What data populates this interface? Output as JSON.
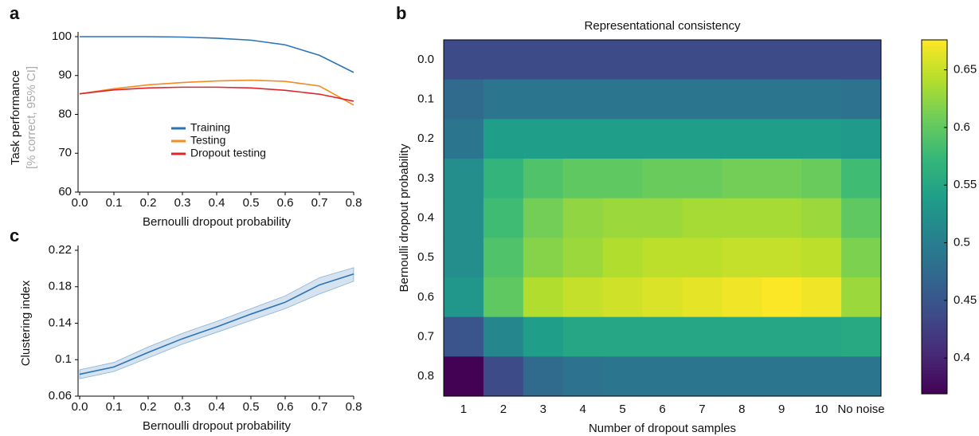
{
  "chart_data": [
    {
      "type": "line",
      "panel": "a",
      "xlabel": "Bernoulli dropout probability",
      "ylabel": "Task performance",
      "ylabel2": "[% correct, 95% CI]",
      "x": [
        0,
        0.1,
        0.2,
        0.3,
        0.4,
        0.5,
        0.6,
        0.7,
        0.8
      ],
      "series": [
        {
          "name": "Training",
          "color": "#2c73b4",
          "values": [
            100,
            100,
            100,
            99.9,
            99.6,
            99.1,
            97.9,
            95.2,
            90.8
          ]
        },
        {
          "name": "Testing",
          "color": "#f58a1f",
          "values": [
            85.3,
            86.6,
            87.6,
            88.2,
            88.6,
            88.8,
            88.5,
            87.3,
            82.4
          ]
        },
        {
          "name": "Dropout testing",
          "color": "#e0242b",
          "values": [
            85.3,
            86.3,
            86.8,
            87.0,
            87.0,
            86.8,
            86.2,
            85.2,
            83.4
          ]
        }
      ],
      "xlim": [
        0,
        0.8
      ],
      "xticks": [
        {
          "value": 0,
          "label": "0.0"
        },
        0.1,
        0.2,
        0.3,
        0.4,
        0.5,
        0.6,
        0.7,
        0.8
      ],
      "ylim": [
        60,
        100
      ],
      "yticks": [
        60,
        70,
        80,
        90,
        100
      ],
      "legend": "center"
    },
    {
      "type": "heatmap",
      "panel": "b",
      "title": "Representational consistency",
      "xlabel": "Number of dropout samples",
      "ylabel": "Bernoulli dropout probability",
      "x": [
        "1",
        "2",
        "3",
        "4",
        "5",
        "6",
        "7",
        "8",
        "9",
        "10",
        "No noise"
      ],
      "y": [
        "0.0",
        "0.1",
        "0.2",
        "0.3",
        "0.4",
        "0.5",
        "0.6",
        "0.7",
        "0.8"
      ],
      "values": [
        [
          0.44,
          0.44,
          0.44,
          0.44,
          0.44,
          0.44,
          0.44,
          0.44,
          0.44,
          0.44,
          0.44
        ],
        [
          0.475,
          0.49,
          0.49,
          0.49,
          0.49,
          0.49,
          0.49,
          0.49,
          0.49,
          0.49,
          0.485
        ],
        [
          0.49,
          0.54,
          0.54,
          0.54,
          0.54,
          0.54,
          0.54,
          0.54,
          0.54,
          0.54,
          0.535
        ],
        [
          0.52,
          0.57,
          0.59,
          0.6,
          0.6,
          0.605,
          0.605,
          0.61,
          0.61,
          0.605,
          0.58
        ],
        [
          0.52,
          0.58,
          0.61,
          0.625,
          0.63,
          0.63,
          0.635,
          0.635,
          0.635,
          0.63,
          0.6
        ],
        [
          0.52,
          0.59,
          0.62,
          0.63,
          0.64,
          0.645,
          0.645,
          0.65,
          0.65,
          0.645,
          0.615
        ],
        [
          0.53,
          0.6,
          0.64,
          0.65,
          0.655,
          0.66,
          0.665,
          0.67,
          0.675,
          0.67,
          0.63
        ],
        [
          0.45,
          0.51,
          0.54,
          0.55,
          0.55,
          0.55,
          0.55,
          0.55,
          0.55,
          0.55,
          0.555
        ],
        [
          0.37,
          0.44,
          0.475,
          0.485,
          0.49,
          0.49,
          0.49,
          0.49,
          0.49,
          0.49,
          0.49
        ]
      ],
      "colormap": "viridis",
      "clim": [
        0.369,
        0.676
      ],
      "cticks": [
        0.4,
        0.45,
        0.5,
        0.55,
        0.6,
        0.65
      ]
    },
    {
      "type": "line",
      "panel": "c",
      "xlabel": "Bernoulli dropout probability",
      "ylabel": "Clustering index",
      "x": [
        0,
        0.1,
        0.2,
        0.3,
        0.4,
        0.5,
        0.6,
        0.7,
        0.8
      ],
      "series": [
        {
          "color": "#2c73b4",
          "values": [
            0.084,
            0.092,
            0.108,
            0.123,
            0.136,
            0.15,
            0.163,
            0.182,
            0.194
          ]
        }
      ],
      "band": {
        "lower": [
          0.079,
          0.087,
          0.102,
          0.117,
          0.13,
          0.143,
          0.156,
          0.172,
          0.186
        ],
        "upper": [
          0.089,
          0.097,
          0.114,
          0.129,
          0.142,
          0.156,
          0.17,
          0.19,
          0.201
        ]
      },
      "xlim": [
        0,
        0.8
      ],
      "xticks": [
        {
          "value": 0,
          "label": "0.0"
        },
        0.1,
        0.2,
        0.3,
        0.4,
        0.5,
        0.6,
        0.7,
        0.8
      ],
      "ylim": [
        0.06,
        0.22
      ],
      "yticks": [
        0.06,
        0.1,
        0.14,
        0.18,
        0.22
      ]
    }
  ]
}
